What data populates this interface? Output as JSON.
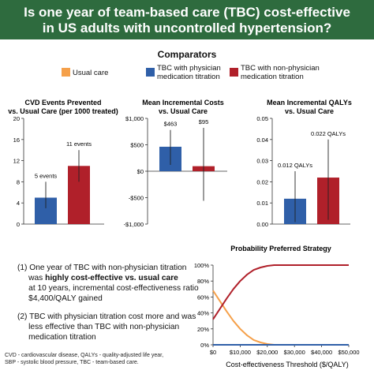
{
  "banner": {
    "line1": "Is one year of team-based care (TBC) cost-effective",
    "line2": "in US adults with uncontrolled hypertension?"
  },
  "comparators": {
    "title": "Comparators",
    "items": [
      {
        "label": [
          "Usual care"
        ],
        "color": "#f5a04a"
      },
      {
        "label": [
          "TBC with physician",
          "medication titration"
        ],
        "color": "#2f5fa8"
      },
      {
        "label": [
          "TBC with non-physician",
          "medication titration"
        ],
        "color": "#b0202a"
      }
    ]
  },
  "chart_data": [
    {
      "type": "bar",
      "title": [
        "CVD Events Prevented",
        "vs. Usual Care (per 1000 treated)"
      ],
      "categories": [
        "TBC with physician medication titration",
        "TBC with non-physician medication titration"
      ],
      "values": [
        5,
        11
      ],
      "ci": [
        [
          3,
          8
        ],
        [
          8,
          14
        ]
      ],
      "data_labels": [
        "5 events",
        "11 events"
      ],
      "colors": [
        "#2f5fa8",
        "#b0202a"
      ],
      "ylim": [
        0,
        20
      ],
      "yticks": [
        "0",
        "4",
        "8",
        "12",
        "16",
        "20"
      ]
    },
    {
      "type": "bar",
      "title": [
        "Mean Incremental Costs",
        "vs. Usual Care"
      ],
      "categories": [
        "TBC with physician medication titration",
        "TBC with non-physician medication titration"
      ],
      "values": [
        463,
        95
      ],
      "ci": [
        [
          120,
          780
        ],
        [
          -560,
          820
        ]
      ],
      "data_labels": [
        "$463",
        "$95"
      ],
      "colors": [
        "#2f5fa8",
        "#b0202a"
      ],
      "ylim": [
        -1000,
        1000
      ],
      "yticks": [
        "-$1,000",
        "-$500",
        "$0",
        "$500",
        "$1,000"
      ]
    },
    {
      "type": "bar",
      "title": [
        "Mean Incremental QALYs",
        "vs. Usual Care"
      ],
      "categories": [
        "TBC with physician medication titration",
        "TBC with non-physician medication titration"
      ],
      "values": [
        0.012,
        0.022
      ],
      "ci": [
        [
          0.001,
          0.025
        ],
        [
          0.002,
          0.04
        ]
      ],
      "data_labels": [
        "0.012 QALYs",
        "0.022 QALYs"
      ],
      "colors": [
        "#2f5fa8",
        "#b0202a"
      ],
      "ylim": [
        0,
        0.05
      ],
      "yticks": [
        "0.00",
        "0.01",
        "0.02",
        "0.03",
        "0.04",
        "0.05"
      ]
    },
    {
      "type": "line",
      "title": [
        "Probability Preferred Strategy"
      ],
      "xlabel": "Cost-effectiveness Threshold ($/QALY)",
      "xlim": [
        0,
        50000
      ],
      "ylim": [
        0,
        100
      ],
      "xticks": [
        "$0",
        "$10,000",
        "$20,000",
        "$30,000",
        "$40,000",
        "$50,000"
      ],
      "yticks": [
        "0%",
        "20%",
        "40%",
        "60%",
        "80%",
        "100%"
      ],
      "x": [
        0,
        2500,
        5000,
        7500,
        10000,
        12500,
        15000,
        17500,
        20000,
        22500,
        25000,
        30000,
        35000,
        40000,
        45000,
        50000
      ],
      "series": [
        {
          "color": "#f5a04a",
          "values": [
            68,
            55,
            42,
            30,
            20,
            12,
            6,
            3,
            1,
            0,
            0,
            0,
            0,
            0,
            0,
            0
          ]
        },
        {
          "color": "#2f5fa8",
          "values": [
            0,
            0,
            0,
            0,
            0,
            0,
            0,
            0,
            0,
            0,
            0,
            0,
            0,
            0,
            0,
            0
          ]
        },
        {
          "color": "#b0202a",
          "values": [
            32,
            45,
            58,
            70,
            80,
            88,
            94,
            97,
            99,
            100,
            100,
            100,
            100,
            100,
            100,
            100
          ]
        }
      ]
    }
  ],
  "bullets": {
    "b1": [
      [
        {
          "t": "(1) One year of TBC with non-physician titration",
          "b": false
        }
      ],
      [
        {
          "t": "was ",
          "b": false
        },
        {
          "t": "highly cost-effective vs. usual care",
          "b": true
        }
      ],
      [
        {
          "t": "at 10 years, incremental cost-effectiveness ratio",
          "b": false
        }
      ],
      [
        {
          "t": "$4,400/QALY gained",
          "b": false
        }
      ]
    ],
    "b2": [
      [
        {
          "t": "(2) TBC with physician titration cost more and was",
          "b": false
        }
      ],
      [
        {
          "t": "less effective than TBC with non-physician",
          "b": false
        }
      ],
      [
        {
          "t": "medication titration",
          "b": false
        }
      ]
    ]
  },
  "footnote": {
    "line1": "CVD - cardiovascular disease, QALYs - quality-adjusted life year,",
    "line2": "SBP - systolic blood pressure, TBC - team-based care."
  }
}
